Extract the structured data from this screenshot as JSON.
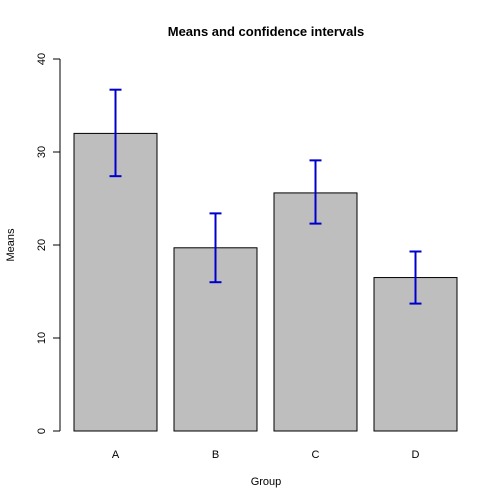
{
  "chart_data": {
    "type": "bar",
    "title": "Means and confidence intervals",
    "xlabel": "Group",
    "ylabel": "Means",
    "categories": [
      "A",
      "B",
      "C",
      "D"
    ],
    "values": [
      32.0,
      19.7,
      25.6,
      16.5
    ],
    "ci_lower": [
      27.4,
      16.0,
      22.3,
      13.7
    ],
    "ci_upper": [
      36.7,
      23.4,
      29.1,
      19.3
    ],
    "ylim": [
      0,
      40
    ],
    "yticks": [
      "0",
      "10",
      "20",
      "30",
      "40"
    ],
    "ytick_values": [
      0,
      10,
      20,
      30,
      40
    ],
    "grid": false,
    "colors": {
      "bar_fill": "#bebebe",
      "bar_stroke": "#000000",
      "error_bar": "#0000cd",
      "axis": "#000000"
    }
  }
}
